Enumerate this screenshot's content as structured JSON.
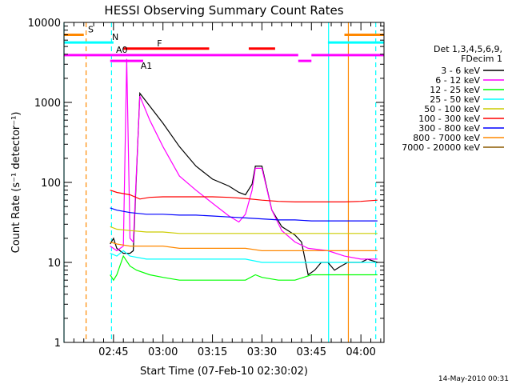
{
  "chart_data": {
    "type": "line",
    "title": "HESSI Observing Summary Count Rates",
    "xlabel": "Start Time (07-Feb-10 02:30:02)",
    "ylabel": "Count Rate (s⁻¹ detector⁻¹)",
    "y_scale": "log",
    "ylim": [
      1,
      10000
    ],
    "xlim_minutes_after_start": [
      0,
      97
    ],
    "x_ticks": [
      {
        "label": "02:45",
        "t": 15
      },
      {
        "label": "03:00",
        "t": 30
      },
      {
        "label": "03:15",
        "t": 45
      },
      {
        "label": "03:30",
        "t": 60
      },
      {
        "label": "03:45",
        "t": 75
      },
      {
        "label": "04:00",
        "t": 90
      }
    ],
    "y_ticks": [
      {
        "label": "1",
        "v": 1
      },
      {
        "label": "10",
        "v": 10
      },
      {
        "label": "100",
        "v": 100
      },
      {
        "label": "1000",
        "v": 1000
      },
      {
        "label": "10000",
        "v": 10000
      }
    ],
    "legend_title": [
      "Det 1,3,4,5,6,9,",
      "FDecim 1"
    ],
    "series": [
      {
        "name": "3 - 6 keV",
        "color": "#000000",
        "points": [
          [
            14,
            17
          ],
          [
            15,
            20
          ],
          [
            16,
            15
          ],
          [
            18,
            13
          ],
          [
            20,
            13
          ],
          [
            21,
            14
          ],
          [
            23,
            1300
          ],
          [
            26,
            900
          ],
          [
            30,
            550
          ],
          [
            35,
            280
          ],
          [
            40,
            160
          ],
          [
            45,
            110
          ],
          [
            50,
            90
          ],
          [
            53,
            75
          ],
          [
            55,
            70
          ],
          [
            57,
            95
          ],
          [
            58,
            160
          ],
          [
            60,
            160
          ],
          [
            63,
            45
          ],
          [
            66,
            28
          ],
          [
            70,
            22
          ],
          [
            72,
            18
          ],
          [
            74,
            7
          ],
          [
            76,
            8
          ],
          [
            78,
            10
          ],
          [
            80,
            10
          ],
          [
            82,
            8
          ],
          [
            84,
            9
          ],
          [
            86,
            10
          ],
          [
            88,
            10
          ],
          [
            90,
            10
          ],
          [
            92,
            11
          ],
          [
            95,
            10
          ]
        ]
      },
      {
        "name": "6 - 12 keV",
        "color": "#ff00ff",
        "points": [
          [
            14,
            16
          ],
          [
            16,
            14
          ],
          [
            18,
            16
          ],
          [
            19,
            3500
          ],
          [
            20,
            20
          ],
          [
            21,
            18
          ],
          [
            23,
            1200
          ],
          [
            26,
            600
          ],
          [
            30,
            280
          ],
          [
            35,
            120
          ],
          [
            40,
            80
          ],
          [
            45,
            55
          ],
          [
            50,
            38
          ],
          [
            53,
            32
          ],
          [
            55,
            40
          ],
          [
            57,
            80
          ],
          [
            58,
            150
          ],
          [
            60,
            150
          ],
          [
            63,
            45
          ],
          [
            66,
            25
          ],
          [
            70,
            18
          ],
          [
            74,
            15
          ],
          [
            80,
            14
          ],
          [
            85,
            12
          ],
          [
            90,
            11
          ],
          [
            95,
            11
          ]
        ]
      },
      {
        "name": "12 - 25 keV",
        "color": "#00ff00",
        "points": [
          [
            14,
            7
          ],
          [
            15,
            6
          ],
          [
            16,
            7
          ],
          [
            18,
            12
          ],
          [
            20,
            9
          ],
          [
            22,
            8
          ],
          [
            26,
            7
          ],
          [
            30,
            6.5
          ],
          [
            35,
            6
          ],
          [
            40,
            6
          ],
          [
            45,
            6
          ],
          [
            50,
            6
          ],
          [
            55,
            6
          ],
          [
            58,
            7
          ],
          [
            60,
            6.5
          ],
          [
            65,
            6
          ],
          [
            70,
            6
          ],
          [
            75,
            7
          ],
          [
            80,
            7
          ],
          [
            85,
            7
          ],
          [
            90,
            7
          ],
          [
            95,
            7
          ]
        ]
      },
      {
        "name": "25 - 50 keV",
        "color": "#00ffff",
        "points": [
          [
            14,
            13
          ],
          [
            16,
            12
          ],
          [
            18,
            14
          ],
          [
            20,
            12
          ],
          [
            25,
            11
          ],
          [
            30,
            11
          ],
          [
            35,
            11
          ],
          [
            40,
            11
          ],
          [
            45,
            11
          ],
          [
            50,
            11
          ],
          [
            55,
            11
          ],
          [
            60,
            10
          ],
          [
            65,
            10
          ],
          [
            70,
            10
          ],
          [
            75,
            10
          ],
          [
            80,
            10
          ],
          [
            85,
            10
          ],
          [
            90,
            10
          ],
          [
            95,
            10
          ]
        ]
      },
      {
        "name": "50 - 100 keV",
        "color": "#cccc00",
        "points": [
          [
            14,
            28
          ],
          [
            16,
            26
          ],
          [
            20,
            25
          ],
          [
            25,
            24
          ],
          [
            30,
            24
          ],
          [
            35,
            23
          ],
          [
            40,
            23
          ],
          [
            45,
            23
          ],
          [
            50,
            23
          ],
          [
            55,
            23
          ],
          [
            60,
            23
          ],
          [
            65,
            23
          ],
          [
            70,
            23
          ],
          [
            75,
            23
          ],
          [
            80,
            23
          ],
          [
            85,
            23
          ],
          [
            90,
            23
          ],
          [
            95,
            23
          ]
        ]
      },
      {
        "name": "100 - 300 keV",
        "color": "#ff0000",
        "points": [
          [
            14,
            80
          ],
          [
            16,
            75
          ],
          [
            20,
            70
          ],
          [
            23,
            62
          ],
          [
            26,
            65
          ],
          [
            30,
            66
          ],
          [
            35,
            66
          ],
          [
            40,
            66
          ],
          [
            45,
            66
          ],
          [
            50,
            65
          ],
          [
            55,
            63
          ],
          [
            60,
            60
          ],
          [
            65,
            58
          ],
          [
            70,
            57
          ],
          [
            75,
            57
          ],
          [
            80,
            57
          ],
          [
            85,
            57
          ],
          [
            90,
            58
          ],
          [
            95,
            60
          ]
        ]
      },
      {
        "name": "300 - 800 keV",
        "color": "#0000ff",
        "points": [
          [
            14,
            48
          ],
          [
            16,
            45
          ],
          [
            20,
            42
          ],
          [
            25,
            40
          ],
          [
            30,
            40
          ],
          [
            35,
            39
          ],
          [
            40,
            39
          ],
          [
            45,
            38
          ],
          [
            50,
            37
          ],
          [
            55,
            36
          ],
          [
            60,
            35
          ],
          [
            65,
            34
          ],
          [
            70,
            34
          ],
          [
            75,
            33
          ],
          [
            80,
            33
          ],
          [
            85,
            33
          ],
          [
            90,
            33
          ],
          [
            95,
            33
          ]
        ]
      },
      {
        "name": "800 - 7000 keV",
        "color": "#ff8800",
        "points": [
          [
            14,
            18
          ],
          [
            16,
            17
          ],
          [
            20,
            16
          ],
          [
            25,
            16
          ],
          [
            30,
            16
          ],
          [
            35,
            15
          ],
          [
            40,
            15
          ],
          [
            45,
            15
          ],
          [
            50,
            15
          ],
          [
            55,
            15
          ],
          [
            60,
            14
          ],
          [
            65,
            14
          ],
          [
            70,
            14
          ],
          [
            75,
            14
          ],
          [
            80,
            14
          ],
          [
            85,
            14
          ],
          [
            90,
            14
          ],
          [
            95,
            14
          ]
        ]
      },
      {
        "name": "7000 - 20000 keV",
        "color": "#8b5a00",
        "points": []
      }
    ],
    "flag_bars": [
      {
        "label": "S",
        "color": "#ff8800",
        "level": 7000,
        "segments": [
          [
            0,
            6
          ],
          [
            85,
            97
          ]
        ]
      },
      {
        "label": "N",
        "color": "#00ffff",
        "level": 5600,
        "segments": [
          [
            0,
            15
          ],
          [
            80,
            97
          ]
        ]
      },
      {
        "label": "F",
        "color": "#ff0000",
        "level": 4700,
        "segments": [
          [
            18,
            44
          ],
          [
            56,
            64
          ]
        ]
      },
      {
        "label": "A0",
        "color": "#ff00ff",
        "level": 3900,
        "segments": [
          [
            0,
            71
          ],
          [
            75,
            97
          ]
        ]
      },
      {
        "label": "A1",
        "color": "#ff00ff",
        "level": 3300,
        "segments": [
          [
            14,
            24
          ],
          [
            71,
            75
          ]
        ]
      }
    ],
    "vertical_markers": [
      {
        "t": 0,
        "color": "#00ffff",
        "style": "solid"
      },
      {
        "t": 6.7,
        "color": "#ff8800",
        "style": "dashed"
      },
      {
        "t": 14.4,
        "color": "#00ffff",
        "style": "dashed"
      },
      {
        "t": 80.2,
        "color": "#00ffff",
        "style": "solid"
      },
      {
        "t": 86.2,
        "color": "#ff8800",
        "style": "solid"
      },
      {
        "t": 94.5,
        "color": "#00ffff",
        "style": "dashed"
      }
    ],
    "grid": false,
    "legend_position": "right"
  },
  "footer": {
    "date": "14-May-2010 00:31"
  }
}
